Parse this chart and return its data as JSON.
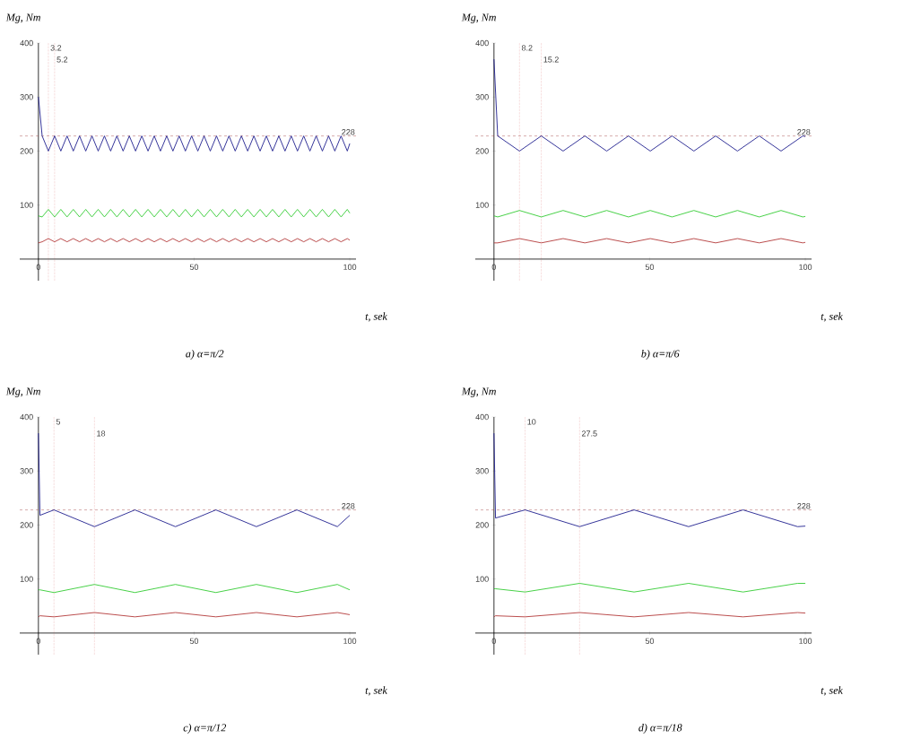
{
  "chart_data": [
    {
      "type": "line",
      "title": "a) α=π/2",
      "xlabel": "t, sek",
      "ylabel": "Mg, Nm",
      "xlim": [
        -6,
        102
      ],
      "ylim": [
        -40,
        400
      ],
      "xticks": [
        0,
        50,
        100
      ],
      "yticks": [
        100,
        200,
        300,
        400
      ],
      "x": [
        0,
        1.2,
        3.2,
        5.2,
        7.2,
        9.2,
        11.2,
        13.2,
        15.2,
        17.2,
        19.2,
        21.2,
        23.2,
        25.2,
        27.2,
        29.2,
        31.2,
        33.2,
        35.2,
        37.2,
        39.2,
        41.2,
        43.2,
        45.2,
        47.2,
        49.2,
        51.2,
        53.2,
        55.2,
        57.2,
        59.2,
        61.2,
        63.2,
        65.2,
        67.2,
        69.2,
        71.2,
        73.2,
        75.2,
        77.2,
        79.2,
        81.2,
        83.2,
        85.2,
        87.2,
        89.2,
        91.2,
        93.2,
        95.2,
        97.2,
        99.2,
        100
      ],
      "series": [
        {
          "color": "#1f1f8f",
          "values": [
            300,
            228,
            200,
            228,
            200,
            228,
            200,
            228,
            200,
            228,
            200,
            228,
            200,
            228,
            200,
            228,
            200,
            228,
            200,
            228,
            200,
            228,
            200,
            228,
            200,
            228,
            200,
            228,
            200,
            228,
            200,
            228,
            200,
            228,
            200,
            228,
            200,
            228,
            200,
            228,
            200,
            228,
            200,
            228,
            200,
            228,
            200,
            228,
            200,
            228,
            200,
            214
          ]
        },
        {
          "color": "#33cc33",
          "values": [
            80,
            78,
            92,
            78,
            92,
            78,
            92,
            78,
            92,
            78,
            92,
            78,
            92,
            78,
            92,
            78,
            92,
            78,
            92,
            78,
            92,
            78,
            92,
            78,
            92,
            78,
            92,
            78,
            92,
            78,
            92,
            78,
            92,
            78,
            92,
            78,
            92,
            78,
            92,
            78,
            92,
            78,
            92,
            78,
            92,
            78,
            92,
            78,
            92,
            78,
            92,
            85
          ]
        },
        {
          "color": "#b33a3a",
          "values": [
            30,
            32,
            38,
            32,
            38,
            32,
            38,
            32,
            38,
            32,
            38,
            32,
            38,
            32,
            38,
            32,
            38,
            32,
            38,
            32,
            38,
            32,
            38,
            32,
            38,
            32,
            38,
            32,
            38,
            32,
            38,
            32,
            38,
            32,
            38,
            32,
            38,
            32,
            38,
            32,
            38,
            32,
            38,
            32,
            38,
            32,
            38,
            32,
            38,
            32,
            38,
            35
          ]
        }
      ],
      "ref_lines": [
        {
          "axis": "x",
          "value": 3.2,
          "label": "3.2",
          "color": "#cc3333",
          "line_style": "dotted"
        },
        {
          "axis": "x",
          "value": 5.2,
          "label": "5.2",
          "color": "#cc3333",
          "line_style": "dotted"
        },
        {
          "axis": "y",
          "value": 228,
          "label": "228",
          "color": "#993333",
          "line_style": "dashed"
        }
      ]
    },
    {
      "type": "line",
      "title": "b) α=π/6",
      "xlabel": "t, sek",
      "ylabel": "Mg, Nm",
      "xlim": [
        -6,
        102
      ],
      "ylim": [
        -40,
        400
      ],
      "xticks": [
        0,
        50,
        100
      ],
      "yticks": [
        100,
        200,
        300,
        400
      ],
      "x": [
        0,
        1.2,
        8.2,
        15.2,
        22.2,
        29.2,
        36.2,
        43.2,
        50.2,
        57.2,
        64.2,
        71.2,
        78.2,
        85.2,
        92.2,
        99.2,
        100
      ],
      "series": [
        {
          "color": "#1f1f8f",
          "values": [
            370,
            228,
            200,
            228,
            200,
            228,
            200,
            228,
            200,
            228,
            200,
            228,
            200,
            228,
            200,
            228,
            227
          ]
        },
        {
          "color": "#33cc33",
          "values": [
            80,
            78,
            90,
            78,
            90,
            78,
            90,
            78,
            90,
            78,
            90,
            78,
            90,
            78,
            90,
            78,
            79
          ]
        },
        {
          "color": "#b33a3a",
          "values": [
            30,
            30,
            38,
            30,
            38,
            30,
            38,
            30,
            38,
            30,
            38,
            30,
            38,
            30,
            38,
            30,
            31
          ]
        }
      ],
      "ref_lines": [
        {
          "axis": "x",
          "value": 8.2,
          "label": "8.2",
          "color": "#cc3333",
          "line_style": "dotted"
        },
        {
          "axis": "x",
          "value": 15.2,
          "label": "15.2",
          "color": "#cc3333",
          "line_style": "dotted"
        },
        {
          "axis": "y",
          "value": 228,
          "label": "228",
          "color": "#993333",
          "line_style": "dashed"
        }
      ]
    },
    {
      "type": "line",
      "title": "c) α=π/12",
      "xlabel": "t, sek",
      "ylabel": "Mg, Nm",
      "xlim": [
        -6,
        102
      ],
      "ylim": [
        -40,
        400
      ],
      "xticks": [
        0,
        50,
        100
      ],
      "yticks": [
        100,
        200,
        300,
        400
      ],
      "x": [
        0,
        0.5,
        5,
        18,
        31,
        44,
        57,
        70,
        83,
        96,
        100
      ],
      "series": [
        {
          "color": "#1f1f8f",
          "values": [
            370,
            218,
            228,
            197,
            228,
            197,
            228,
            197,
            228,
            197,
            218
          ]
        },
        {
          "color": "#33cc33",
          "values": [
            80,
            80,
            75,
            90,
            75,
            90,
            75,
            90,
            75,
            90,
            80
          ]
        },
        {
          "color": "#b33a3a",
          "values": [
            30,
            32,
            30,
            38,
            30,
            38,
            30,
            38,
            30,
            38,
            34
          ]
        }
      ],
      "ref_lines": [
        {
          "axis": "x",
          "value": 5,
          "label": "5",
          "color": "#cc3333",
          "line_style": "dotted"
        },
        {
          "axis": "x",
          "value": 18,
          "label": "18",
          "color": "#cc3333",
          "line_style": "dotted"
        },
        {
          "axis": "y",
          "value": 228,
          "label": "228",
          "color": "#993333",
          "line_style": "dashed"
        }
      ]
    },
    {
      "type": "line",
      "title": "d) α=π/18",
      "xlabel": "t, sek",
      "ylabel": "Mg, Nm",
      "xlim": [
        -6,
        102
      ],
      "ylim": [
        -40,
        400
      ],
      "xticks": [
        0,
        50,
        100
      ],
      "yticks": [
        100,
        200,
        300,
        400
      ],
      "x": [
        0,
        0.5,
        10,
        27.5,
        45,
        62.5,
        80,
        97.5,
        100
      ],
      "series": [
        {
          "color": "#1f1f8f",
          "values": [
            370,
            213,
            228,
            197,
            228,
            197,
            228,
            197,
            198
          ]
        },
        {
          "color": "#33cc33",
          "values": [
            82,
            82,
            76,
            92,
            76,
            92,
            76,
            92,
            92
          ]
        },
        {
          "color": "#b33a3a",
          "values": [
            30,
            32,
            30,
            38,
            30,
            38,
            30,
            38,
            37
          ]
        }
      ],
      "ref_lines": [
        {
          "axis": "x",
          "value": 10,
          "label": "10",
          "color": "#cc3333",
          "line_style": "dotted"
        },
        {
          "axis": "x",
          "value": 27.5,
          "label": "27.5",
          "color": "#cc3333",
          "line_style": "dotted"
        },
        {
          "axis": "y",
          "value": 228,
          "label": "228",
          "color": "#993333",
          "line_style": "dashed"
        }
      ]
    }
  ]
}
